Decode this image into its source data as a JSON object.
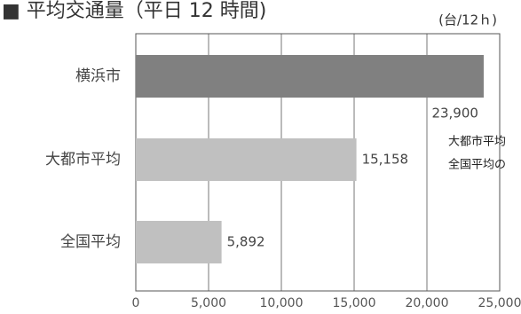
{
  "chart_data": {
    "type": "bar",
    "orientation": "horizontal",
    "title": "■ 平均交通量（平日 12 時間)",
    "unit_label": "(台/12ｈ)",
    "categories": [
      "横浜市",
      "大都市平均",
      "全国平均"
    ],
    "values": [
      23900,
      15158,
      5892
    ],
    "value_labels": [
      "23,900",
      "15,158",
      "5,892"
    ],
    "bar_colors": [
      "#808080",
      "#c0c0c0",
      "#c0c0c0"
    ],
    "xlim": [
      0,
      25000
    ],
    "xticks": [
      0,
      5000,
      10000,
      15000,
      20000,
      25000
    ],
    "xtick_labels": [
      "0",
      "5,000",
      "10,000",
      "15,000",
      "20,000",
      "25,000"
    ],
    "grid": true,
    "annotations": [
      "大都市平均",
      "全国平均の"
    ]
  }
}
